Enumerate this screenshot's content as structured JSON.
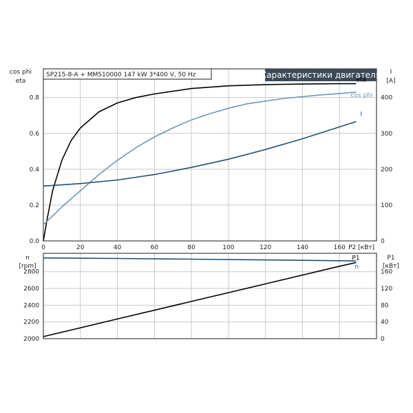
{
  "header": {
    "info": "SP215-8-A + MMS10000   147 kW   3*400 V, 50 Hz",
    "title": "Характеристики двигателя"
  },
  "colors": {
    "eta": "#000000",
    "cos_phi": "#6f97b8",
    "I": "#1f4e79",
    "n": "#1f4e79",
    "P1": "#000000",
    "grid": "#c8c8c8",
    "title_bg": "#3c4a57"
  },
  "chart_data": [
    {
      "type": "line",
      "panel": "top",
      "x_axis": {
        "label": "P2 [кВт]",
        "range": [
          0,
          180
        ],
        "ticks": [
          0,
          20,
          40,
          60,
          80,
          100,
          120,
          140,
          160
        ]
      },
      "y_left": {
        "label_line1": "cos phi",
        "label_line2": "eta",
        "range": [
          0,
          0.96
        ],
        "ticks": [
          0.0,
          0.2,
          0.4,
          0.6,
          0.8
        ],
        "tick_labels": [
          "0.0",
          "0.2",
          "0.4",
          "0.6",
          "0.8"
        ]
      },
      "y_right": {
        "label_line1": "I",
        "label_line2": "[A]",
        "range": [
          0,
          480
        ],
        "ticks": [
          0,
          100,
          200,
          300,
          400
        ]
      },
      "grid": true,
      "series": [
        {
          "key": "eta",
          "name": "eta",
          "axis": "left",
          "x": [
            0,
            2,
            5,
            10,
            15,
            20,
            30,
            40,
            50,
            60,
            80,
            100,
            120,
            140,
            160,
            169
          ],
          "y": [
            0.0,
            0.12,
            0.28,
            0.45,
            0.56,
            0.63,
            0.72,
            0.77,
            0.8,
            0.82,
            0.85,
            0.865,
            0.872,
            0.875,
            0.877,
            0.877
          ]
        },
        {
          "key": "cos_phi",
          "name": "cos phi",
          "axis": "left",
          "x": [
            0,
            10,
            20,
            30,
            40,
            50,
            60,
            70,
            80,
            90,
            100,
            110,
            120,
            130,
            140,
            150,
            160,
            169
          ],
          "y": [
            0.09,
            0.19,
            0.28,
            0.37,
            0.45,
            0.52,
            0.58,
            0.63,
            0.675,
            0.71,
            0.74,
            0.765,
            0.78,
            0.795,
            0.805,
            0.815,
            0.822,
            0.83
          ]
        },
        {
          "key": "I",
          "name": "I",
          "axis": "right",
          "x": [
            0,
            20,
            40,
            60,
            80,
            100,
            120,
            140,
            160,
            169
          ],
          "y": [
            153,
            160,
            170,
            185,
            205,
            228,
            255,
            285,
            318,
            333
          ]
        }
      ]
    },
    {
      "type": "line",
      "panel": "bottom",
      "x_axis": {
        "range": [
          0,
          180
        ]
      },
      "y_left": {
        "label_line1": "n",
        "label_line2": "[rpm]",
        "range": [
          2000,
          3020
        ],
        "ticks": [
          2000,
          2200,
          2400,
          2600,
          2800
        ]
      },
      "y_right": {
        "label_line1": "P1",
        "label_line2": "[кВт]",
        "range": [
          0,
          204
        ],
        "ticks": [
          0,
          40,
          80,
          120,
          160
        ]
      },
      "grid": true,
      "series": [
        {
          "key": "n",
          "name": "n",
          "axis": "left",
          "x": [
            0,
            40,
            80,
            120,
            160,
            169
          ],
          "y": [
            2965,
            2958,
            2950,
            2941,
            2931,
            2928
          ]
        },
        {
          "key": "P1",
          "name": "P1",
          "axis": "right",
          "x": [
            0,
            40,
            80,
            120,
            160,
            169
          ],
          "y": [
            5,
            47,
            89,
            131,
            173,
            182
          ]
        }
      ]
    }
  ]
}
